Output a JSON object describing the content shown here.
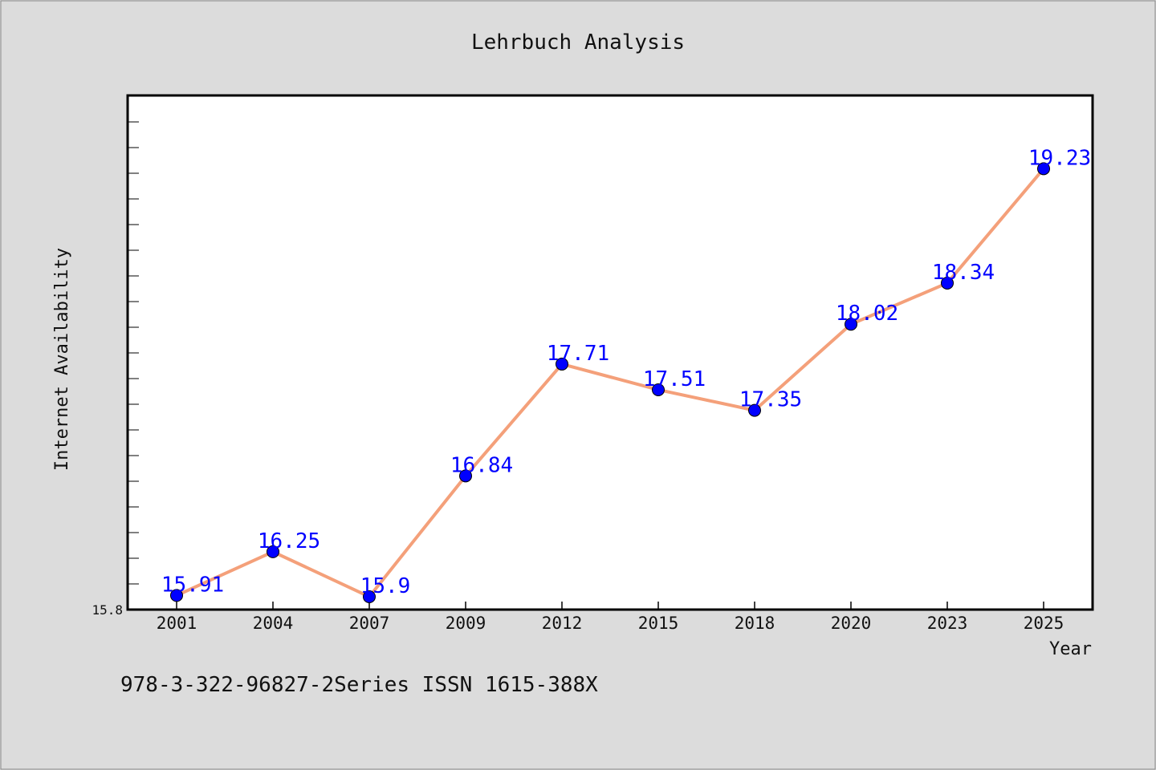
{
  "chart_data": {
    "type": "line",
    "title": "Lehrbuch Analysis",
    "xlabel": "Year",
    "ylabel": "Internet Availability",
    "categories": [
      "2001",
      "2004",
      "2007",
      "2009",
      "2012",
      "2015",
      "2018",
      "2020",
      "2023",
      "2025"
    ],
    "series": [
      {
        "values": [
          15.91,
          16.25,
          15.9,
          16.84,
          17.71,
          17.51,
          17.35,
          18.02,
          18.34,
          19.23
        ],
        "labels": [
          "15.91",
          "16.25",
          "15.9",
          "16.84",
          "17.71",
          "17.51",
          "17.35",
          "18.02",
          "18.34",
          "19.23"
        ],
        "line_color": "#f4a07a",
        "marker_color": "#0000ff"
      }
    ],
    "ylim": [
      15.8,
      19.8
    ],
    "y_tick_labels": [
      "15.8"
    ],
    "grid": false,
    "background": "#dcdcdc",
    "plot_background": "#ffffff"
  },
  "footnote": "978-3-322-96827-2Series ISSN 1615-388X"
}
